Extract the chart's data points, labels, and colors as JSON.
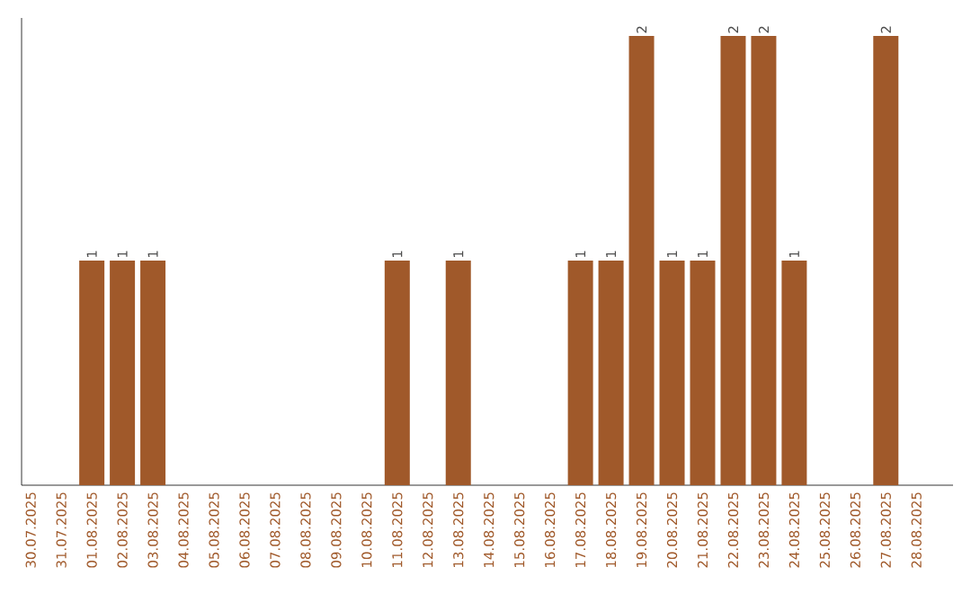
{
  "chart_data": {
    "type": "bar",
    "categories": [
      "30.07.2025",
      "31.07.2025",
      "01.08.2025",
      "02.08.2025",
      "03.08.2025",
      "04.08.2025",
      "05.08.2025",
      "06.08.2025",
      "07.08.2025",
      "08.08.2025",
      "09.08.2025",
      "10.08.2025",
      "11.08.2025",
      "12.08.2025",
      "13.08.2025",
      "14.08.2025",
      "15.08.2025",
      "16.08.2025",
      "17.08.2025",
      "18.08.2025",
      "19.08.2025",
      "20.08.2025",
      "21.08.2025",
      "22.08.2025",
      "23.08.2025",
      "24.08.2025",
      "25.08.2025",
      "26.08.2025",
      "27.08.2025",
      "28.08.2025"
    ],
    "values": [
      0,
      0,
      1,
      1,
      1,
      0,
      0,
      0,
      0,
      0,
      0,
      0,
      1,
      0,
      1,
      0,
      0,
      0,
      1,
      1,
      2,
      1,
      1,
      2,
      2,
      1,
      0,
      0,
      2,
      0
    ],
    "value_labels": [
      null,
      null,
      "1",
      "1",
      "1",
      null,
      null,
      null,
      null,
      null,
      null,
      null,
      "1",
      null,
      "1",
      null,
      null,
      null,
      "1",
      "1",
      "2",
      "1",
      "1",
      "2",
      "2",
      "1",
      null,
      null,
      "2",
      null
    ],
    "color": "#a0592a",
    "tick_labels": "x",
    "grid": false
  }
}
